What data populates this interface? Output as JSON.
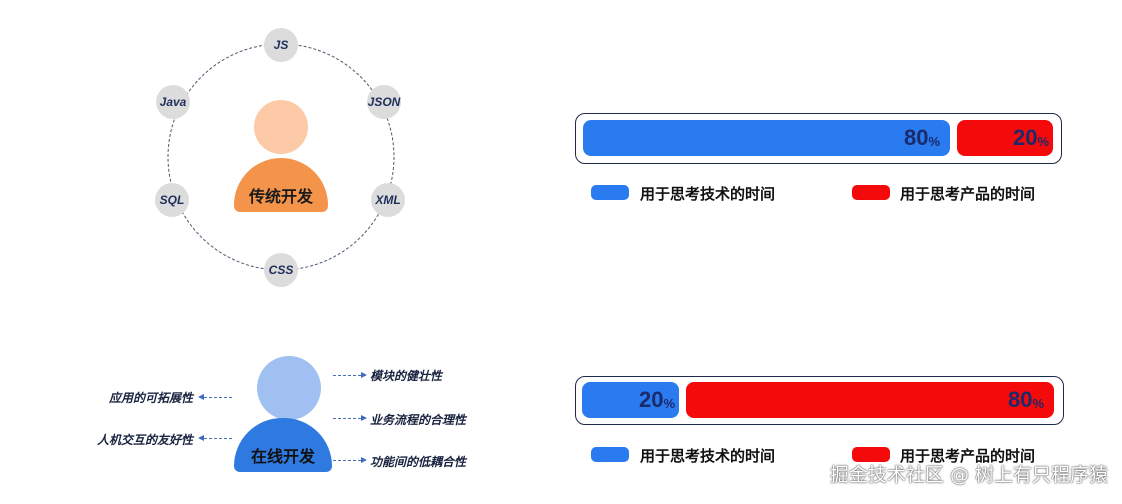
{
  "traditional": {
    "label": "传统开发",
    "skills": [
      "JS",
      "JSON",
      "XML",
      "CSS",
      "SQL",
      "Java"
    ],
    "colors": {
      "head": "#fccaa6",
      "body": "#f4934a"
    }
  },
  "online": {
    "label": "在线开发",
    "left_features": [
      "应用的可拓展性",
      "人机交互的友好性"
    ],
    "right_features": [
      "模块的健壮性",
      "业务流程的合理性",
      "功能间的低耦合性"
    ],
    "colors": {
      "head": "#9fc0f0",
      "body": "#2f7ae0"
    }
  },
  "bars": [
    {
      "tech_pct": 80,
      "product_pct": 20,
      "tech_label": "80",
      "product_label": "20",
      "unit": "%"
    },
    {
      "tech_pct": 20,
      "product_pct": 80,
      "tech_label": "20",
      "product_label": "80",
      "unit": "%"
    }
  ],
  "legend": {
    "tech": "用于思考技术的时间",
    "product": "用于思考产品的时间",
    "tech_color": "#2a7af0",
    "product_color": "#f40a0a"
  },
  "watermark": "掘金技术社区 @ 树上有只程序猿"
}
